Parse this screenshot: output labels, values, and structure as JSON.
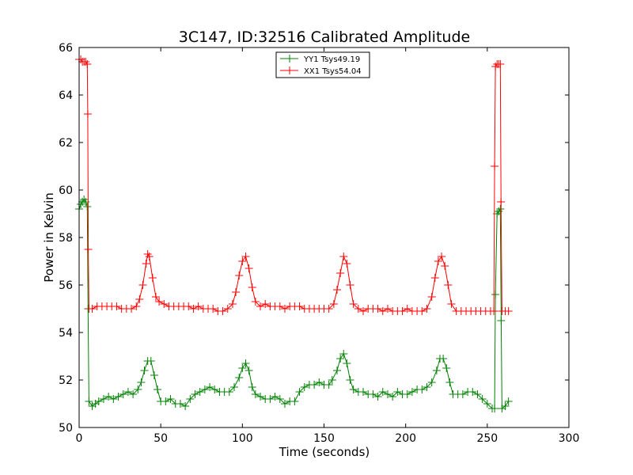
{
  "chart_data": {
    "type": "line",
    "title": "3C147, ID:32516 Calibrated Amplitude",
    "xlabel": "Time (seconds)",
    "ylabel": "Power in Kelvin",
    "xlim": [
      0,
      300
    ],
    "ylim": [
      50,
      66
    ],
    "xticks": [
      0,
      50,
      100,
      150,
      200,
      250,
      300
    ],
    "yticks": [
      50,
      52,
      54,
      56,
      58,
      60,
      62,
      64,
      66
    ],
    "grid": false,
    "legend": "top-center",
    "marker": "plus",
    "series": [
      {
        "name": "YY1 Tsys49.19",
        "color": "#008000",
        "points": [
          [
            0,
            59.2
          ],
          [
            1,
            59.4
          ],
          [
            2,
            59.5
          ],
          [
            3,
            59.6
          ],
          [
            4,
            59.5
          ],
          [
            5,
            59.3
          ],
          [
            5.5,
            55.0
          ],
          [
            6,
            51.1
          ],
          [
            8,
            50.9
          ],
          [
            10,
            51.0
          ],
          [
            12,
            51.1
          ],
          [
            15,
            51.2
          ],
          [
            18,
            51.3
          ],
          [
            21,
            51.2
          ],
          [
            24,
            51.3
          ],
          [
            27,
            51.4
          ],
          [
            30,
            51.5
          ],
          [
            33,
            51.4
          ],
          [
            36,
            51.6
          ],
          [
            38,
            51.9
          ],
          [
            40,
            52.4
          ],
          [
            42,
            52.8
          ],
          [
            44,
            52.8
          ],
          [
            46,
            52.2
          ],
          [
            48,
            51.6
          ],
          [
            50,
            51.1
          ],
          [
            53,
            51.1
          ],
          [
            56,
            51.2
          ],
          [
            59,
            51.0
          ],
          [
            62,
            51.0
          ],
          [
            65,
            50.9
          ],
          [
            68,
            51.2
          ],
          [
            71,
            51.4
          ],
          [
            74,
            51.5
          ],
          [
            77,
            51.6
          ],
          [
            80,
            51.7
          ],
          [
            83,
            51.6
          ],
          [
            86,
            51.5
          ],
          [
            89,
            51.5
          ],
          [
            92,
            51.5
          ],
          [
            95,
            51.7
          ],
          [
            98,
            52.1
          ],
          [
            100,
            52.5
          ],
          [
            102,
            52.7
          ],
          [
            104,
            52.4
          ],
          [
            106,
            51.7
          ],
          [
            108,
            51.4
          ],
          [
            111,
            51.3
          ],
          [
            114,
            51.2
          ],
          [
            117,
            51.2
          ],
          [
            120,
            51.3
          ],
          [
            123,
            51.2
          ],
          [
            126,
            51.0
          ],
          [
            129,
            51.1
          ],
          [
            132,
            51.1
          ],
          [
            135,
            51.5
          ],
          [
            138,
            51.7
          ],
          [
            141,
            51.8
          ],
          [
            144,
            51.8
          ],
          [
            147,
            51.9
          ],
          [
            150,
            51.8
          ],
          [
            153,
            51.8
          ],
          [
            155,
            52.0
          ],
          [
            158,
            52.4
          ],
          [
            160,
            52.9
          ],
          [
            162,
            53.1
          ],
          [
            164,
            52.7
          ],
          [
            166,
            52.0
          ],
          [
            168,
            51.6
          ],
          [
            171,
            51.5
          ],
          [
            174,
            51.5
          ],
          [
            177,
            51.4
          ],
          [
            180,
            51.4
          ],
          [
            183,
            51.3
          ],
          [
            186,
            51.5
          ],
          [
            189,
            51.4
          ],
          [
            192,
            51.3
          ],
          [
            195,
            51.5
          ],
          [
            198,
            51.4
          ],
          [
            201,
            51.4
          ],
          [
            204,
            51.5
          ],
          [
            207,
            51.6
          ],
          [
            210,
            51.6
          ],
          [
            213,
            51.7
          ],
          [
            216,
            51.9
          ],
          [
            219,
            52.4
          ],
          [
            221,
            52.9
          ],
          [
            223,
            52.9
          ],
          [
            225,
            52.5
          ],
          [
            227,
            51.9
          ],
          [
            229,
            51.4
          ],
          [
            232,
            51.4
          ],
          [
            235,
            51.4
          ],
          [
            238,
            51.5
          ],
          [
            241,
            51.5
          ],
          [
            244,
            51.4
          ],
          [
            247,
            51.2
          ],
          [
            250,
            51.0
          ],
          [
            253,
            50.8
          ],
          [
            254.5,
            50.8
          ],
          [
            255,
            55.6
          ],
          [
            256,
            59.0
          ],
          [
            257,
            59.1
          ],
          [
            258,
            59.2
          ],
          [
            258.5,
            54.5
          ],
          [
            259,
            50.8
          ],
          [
            261,
            50.9
          ],
          [
            263,
            51.1
          ]
        ]
      },
      {
        "name": "XX1 Tsys54.04",
        "color": "#ff0000",
        "points": [
          [
            0,
            65.5
          ],
          [
            1,
            65.5
          ],
          [
            2,
            65.4
          ],
          [
            3,
            65.4
          ],
          [
            4,
            65.4
          ],
          [
            5,
            65.3
          ],
          [
            5.3,
            63.2
          ],
          [
            5.6,
            57.5
          ],
          [
            6,
            55.0
          ],
          [
            8,
            55.0
          ],
          [
            11,
            55.1
          ],
          [
            14,
            55.1
          ],
          [
            17,
            55.1
          ],
          [
            20,
            55.1
          ],
          [
            23,
            55.1
          ],
          [
            26,
            55.0
          ],
          [
            29,
            55.0
          ],
          [
            32,
            55.0
          ],
          [
            35,
            55.1
          ],
          [
            37,
            55.4
          ],
          [
            39,
            56.0
          ],
          [
            41,
            56.9
          ],
          [
            42,
            57.3
          ],
          [
            43,
            57.2
          ],
          [
            45,
            56.3
          ],
          [
            47,
            55.5
          ],
          [
            49,
            55.3
          ],
          [
            52,
            55.2
          ],
          [
            55,
            55.1
          ],
          [
            58,
            55.1
          ],
          [
            61,
            55.1
          ],
          [
            64,
            55.1
          ],
          [
            67,
            55.1
          ],
          [
            70,
            55.0
          ],
          [
            73,
            55.1
          ],
          [
            76,
            55.0
          ],
          [
            79,
            55.0
          ],
          [
            82,
            55.0
          ],
          [
            85,
            54.9
          ],
          [
            88,
            54.9
          ],
          [
            91,
            55.0
          ],
          [
            94,
            55.2
          ],
          [
            96,
            55.7
          ],
          [
            98,
            56.4
          ],
          [
            100,
            57.0
          ],
          [
            102,
            57.2
          ],
          [
            104,
            56.7
          ],
          [
            106,
            55.9
          ],
          [
            108,
            55.3
          ],
          [
            111,
            55.1
          ],
          [
            114,
            55.2
          ],
          [
            117,
            55.1
          ],
          [
            120,
            55.1
          ],
          [
            123,
            55.1
          ],
          [
            126,
            55.0
          ],
          [
            129,
            55.1
          ],
          [
            132,
            55.1
          ],
          [
            135,
            55.1
          ],
          [
            138,
            55.0
          ],
          [
            141,
            55.0
          ],
          [
            144,
            55.0
          ],
          [
            147,
            55.0
          ],
          [
            150,
            55.0
          ],
          [
            153,
            55.0
          ],
          [
            156,
            55.2
          ],
          [
            158,
            55.8
          ],
          [
            160,
            56.5
          ],
          [
            162,
            57.2
          ],
          [
            164,
            56.9
          ],
          [
            166,
            56.0
          ],
          [
            168,
            55.2
          ],
          [
            171,
            55.0
          ],
          [
            174,
            54.9
          ],
          [
            177,
            55.0
          ],
          [
            180,
            55.0
          ],
          [
            183,
            55.0
          ],
          [
            186,
            54.9
          ],
          [
            189,
            55.0
          ],
          [
            192,
            54.9
          ],
          [
            195,
            54.9
          ],
          [
            198,
            54.9
          ],
          [
            201,
            55.0
          ],
          [
            204,
            54.9
          ],
          [
            207,
            54.9
          ],
          [
            210,
            54.9
          ],
          [
            213,
            55.0
          ],
          [
            216,
            55.5
          ],
          [
            218,
            56.3
          ],
          [
            220,
            57.0
          ],
          [
            222,
            57.2
          ],
          [
            224,
            56.8
          ],
          [
            226,
            56.0
          ],
          [
            228,
            55.2
          ],
          [
            231,
            54.9
          ],
          [
            234,
            54.9
          ],
          [
            237,
            54.9
          ],
          [
            240,
            54.9
          ],
          [
            243,
            54.9
          ],
          [
            246,
            54.9
          ],
          [
            249,
            54.9
          ],
          [
            252,
            54.9
          ],
          [
            254,
            54.9
          ],
          [
            254.5,
            61.0
          ],
          [
            255,
            65.2
          ],
          [
            256,
            65.3
          ],
          [
            257,
            65.3
          ],
          [
            258,
            65.3
          ],
          [
            258.4,
            59.5
          ],
          [
            259,
            54.9
          ],
          [
            261,
            54.9
          ],
          [
            263,
            54.9
          ]
        ]
      }
    ]
  }
}
